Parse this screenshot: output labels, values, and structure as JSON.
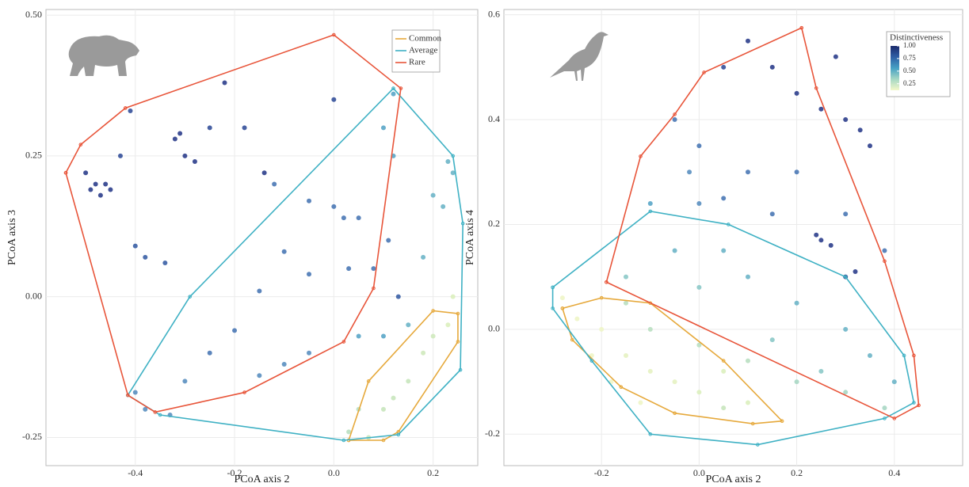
{
  "chart_data": [
    {
      "type": "scatter",
      "xlabel": "PCoA axis 2",
      "ylabel": "PCoA axis 3",
      "xlim": [
        -0.58,
        0.29
      ],
      "ylim": [
        -0.3,
        0.51
      ],
      "xticks": [
        -0.4,
        -0.2,
        {
          "value": 0,
          "label": "0.0"
        },
        0.2
      ],
      "yticks": [
        {
          "value": 0.5,
          "label": "0.50"
        },
        0.25,
        {
          "value": 0,
          "label": "0.00"
        },
        -0.25
      ],
      "grid": true,
      "legend": "top-right",
      "x": [
        -0.49,
        -0.47,
        -0.48,
        -0.45,
        -0.46,
        -0.5,
        -0.43,
        -0.41,
        -0.32,
        -0.3,
        -0.28,
        -0.31,
        -0.25,
        -0.22,
        -0.18,
        -0.14,
        0.0,
        -0.4,
        -0.38,
        -0.34,
        -0.12,
        -0.05,
        0.0,
        0.02,
        0.05,
        0.03,
        0.08,
        0.11,
        0.12,
        0.12,
        0.1,
        0.13,
        -0.1,
        -0.05,
        -0.15,
        -0.2,
        -0.25,
        -0.3,
        -0.4,
        -0.38,
        -0.33,
        0.05,
        0.1,
        0.15,
        0.2,
        0.23,
        0.24,
        0.22,
        0.18,
        -0.05,
        -0.1,
        -0.15,
        0.05,
        0.1,
        0.15,
        0.2,
        0.23,
        0.03,
        0.07,
        0.12,
        0.18,
        0.24
      ],
      "y": [
        0.19,
        0.18,
        0.2,
        0.19,
        0.2,
        0.22,
        0.25,
        0.33,
        0.28,
        0.25,
        0.24,
        0.29,
        0.3,
        0.38,
        0.3,
        0.22,
        0.35,
        0.09,
        0.07,
        0.06,
        0.2,
        0.17,
        0.16,
        0.14,
        0.14,
        0.05,
        0.05,
        0.1,
        0.25,
        0.36,
        0.3,
        0.0,
        0.08,
        0.04,
        0.01,
        -0.06,
        -0.1,
        -0.15,
        -0.17,
        -0.2,
        -0.21,
        -0.07,
        -0.07,
        -0.05,
        0.18,
        0.24,
        0.22,
        0.16,
        0.07,
        -0.1,
        -0.12,
        -0.14,
        -0.2,
        -0.2,
        -0.15,
        -0.07,
        -0.05,
        -0.24,
        -0.25,
        -0.18,
        -0.1,
        0.0
      ],
      "colors": [
        "#2c3e8c",
        "#2c3e8c",
        "#2c3e8c",
        "#2c3e8c",
        "#2c3e8c",
        "#2c3e8c",
        "#34509a",
        "#34509a",
        "#2c3e8c",
        "#2c3e8c",
        "#2c3e8c",
        "#2c3e8c",
        "#34509a",
        "#2c3e8c",
        "#34509a",
        "#2c3e8c",
        "#34509a",
        "#3a5fa5",
        "#3a5fa5",
        "#3a5fa5",
        "#4a78b5",
        "#4a78b5",
        "#4a78b5",
        "#4a78b5",
        "#4a78b5",
        "#4a78b5",
        "#4a78b5",
        "#4a78b5",
        "#5aa6c8",
        "#5aa6c8",
        "#5aa6c8",
        "#3a5fa5",
        "#4a78b5",
        "#4a78b5",
        "#4a78b5",
        "#4a78b5",
        "#4a78b5",
        "#5a8fc0",
        "#5a8fc0",
        "#5a8fc0",
        "#5a8fc0",
        "#5aa6c8",
        "#5aa6c8",
        "#6db5c8",
        "#6db5c8",
        "#6db5c8",
        "#6db5c8",
        "#6db5c8",
        "#6db5c8",
        "#5a8fc0",
        "#5a8fc0",
        "#5a8fc0",
        "#b9dfc1",
        "#c8e6bd",
        "#c8e6bd",
        "#cfe9bd",
        "#dcefbe",
        "#b9dfc1",
        "#c8e6bd",
        "#c8e6bd",
        "#cfe9bd",
        "#dcefbe"
      ],
      "series": [
        {
          "name": "Common",
          "color": "#e6a93c",
          "x": [
            0.03,
            0.07,
            0.2,
            0.25,
            0.25,
            0.13,
            0.1,
            0.03
          ],
          "y": [
            -0.255,
            -0.15,
            -0.025,
            -0.03,
            -0.08,
            -0.24,
            -0.255,
            -0.255
          ]
        },
        {
          "name": "Average",
          "color": "#3fb1c4",
          "x": [
            -0.415,
            -0.29,
            0.12,
            0.24,
            0.26,
            0.255,
            0.13,
            0.02,
            -0.35,
            -0.415
          ],
          "y": [
            -0.175,
            0.0,
            0.37,
            0.25,
            0.13,
            -0.13,
            -0.245,
            -0.255,
            -0.21,
            -0.175
          ]
        },
        {
          "name": "Rare",
          "color": "#e8553a",
          "x": [
            -0.54,
            -0.51,
            -0.42,
            0.0,
            0.135,
            0.08,
            0.02,
            -0.18,
            -0.36,
            -0.415,
            -0.54
          ],
          "y": [
            0.22,
            0.27,
            0.335,
            0.465,
            0.37,
            0.015,
            -0.08,
            -0.17,
            -0.205,
            -0.175,
            0.22
          ]
        }
      ]
    },
    {
      "type": "scatter",
      "xlabel": "PCoA axis 2",
      "ylabel": "PCoA axis 4",
      "xlim": [
        -0.4,
        0.54
      ],
      "ylim": [
        -0.26,
        0.61
      ],
      "xticks": [
        -0.2,
        {
          "value": 0,
          "label": "0.0"
        },
        0.2,
        0.4
      ],
      "yticks": [
        0.6,
        0.4,
        0.2,
        {
          "value": 0,
          "label": "0.0"
        },
        -0.2
      ],
      "grid": true,
      "x": [
        0.1,
        0.15,
        0.2,
        0.25,
        0.3,
        0.25,
        0.27,
        0.24,
        0.3,
        0.32,
        0.35,
        0.33,
        0.28,
        0.05,
        -0.05,
        0.0,
        0.1,
        0.2,
        0.15,
        0.05,
        0.3,
        0.38,
        0.0,
        -0.02,
        -0.1,
        -0.05,
        0.05,
        0.1,
        0.2,
        0.3,
        0.35,
        0.4,
        -0.15,
        0.0,
        0.15,
        0.25,
        -0.15,
        -0.1,
        0.0,
        0.1,
        0.2,
        0.3,
        0.38,
        0.05,
        -0.28,
        -0.25,
        -0.2,
        -0.22,
        -0.15,
        -0.1,
        -0.05,
        0.0,
        0.05,
        0.1,
        -0.18,
        -0.12
      ],
      "y": [
        0.55,
        0.5,
        0.45,
        0.42,
        0.4,
        0.17,
        0.16,
        0.18,
        0.1,
        0.11,
        0.35,
        0.38,
        0.52,
        0.5,
        0.4,
        0.35,
        0.3,
        0.3,
        0.22,
        0.25,
        0.22,
        0.15,
        0.24,
        0.3,
        0.24,
        0.15,
        0.15,
        0.1,
        0.05,
        0.0,
        -0.05,
        -0.1,
        0.1,
        0.08,
        -0.02,
        -0.08,
        0.05,
        0.0,
        -0.03,
        -0.06,
        -0.1,
        -0.12,
        -0.15,
        -0.15,
        0.06,
        0.02,
        0.0,
        -0.05,
        -0.05,
        -0.08,
        -0.1,
        -0.12,
        -0.08,
        -0.14,
        -0.1,
        -0.14
      ],
      "colors": [
        "#2c3e8c",
        "#2c3e8c",
        "#2c3e8c",
        "#2c3e8c",
        "#2c3e8c",
        "#2c3e8c",
        "#2c3e8c",
        "#2c3e8c",
        "#2c3e8c",
        "#2c3e8c",
        "#2c3e8c",
        "#2c3e8c",
        "#2c3e8c",
        "#34509a",
        "#4a78b5",
        "#4a78b5",
        "#4a78b5",
        "#4a78b5",
        "#4a78b5",
        "#4a78b5",
        "#4a78b5",
        "#4a78b5",
        "#5a8fc0",
        "#5a8fc0",
        "#5aa6c8",
        "#6db5c8",
        "#6db5c8",
        "#6db5c8",
        "#6db5c8",
        "#6db5c8",
        "#6db5c8",
        "#6db5c8",
        "#8cc9c8",
        "#8cc9c8",
        "#8cc9c8",
        "#8cc9c8",
        "#b9dfc1",
        "#b9dfc1",
        "#b9dfc1",
        "#b9dfc1",
        "#a8d7c4",
        "#a8d7c4",
        "#a8d7c4",
        "#c8e6bd",
        "#eef5c7",
        "#eef5c7",
        "#eef5c7",
        "#eef5c7",
        "#e6f2c2",
        "#e6f2c2",
        "#e6f2c2",
        "#dcefbe",
        "#dcefbe",
        "#dcefbe",
        "#eef5c7",
        "#eef5c7"
      ],
      "series": [
        {
          "color": "#e6a93c",
          "x": [
            -0.28,
            -0.2,
            -0.1,
            0.05,
            0.17,
            0.11,
            -0.05,
            -0.16,
            -0.26,
            -0.28
          ],
          "y": [
            0.04,
            0.06,
            0.05,
            -0.06,
            -0.175,
            -0.18,
            -0.16,
            -0.11,
            -0.02,
            0.04
          ]
        },
        {
          "color": "#3fb1c4",
          "x": [
            -0.3,
            -0.1,
            0.06,
            0.3,
            0.42,
            0.44,
            0.38,
            0.12,
            -0.1,
            -0.22,
            -0.3,
            -0.3
          ],
          "y": [
            0.08,
            0.225,
            0.2,
            0.1,
            -0.05,
            -0.14,
            -0.17,
            -0.22,
            -0.2,
            -0.06,
            0.04,
            0.08
          ]
        },
        {
          "color": "#e8553a",
          "x": [
            -0.19,
            -0.12,
            -0.05,
            0.01,
            0.21,
            0.24,
            0.38,
            0.44,
            0.45,
            0.4,
            -0.19
          ],
          "y": [
            0.09,
            0.33,
            0.41,
            0.49,
            0.575,
            0.46,
            0.13,
            -0.05,
            -0.145,
            -0.17,
            0.09
          ]
        }
      ],
      "colorbar": {
        "title": "Distinctiveness",
        "lim": [
          0.12,
          1.0
        ],
        "colors": [
          "#f3f8c9",
          "#a6d8c4",
          "#46a1c4",
          "#2f5fa5",
          "#1a2a6c"
        ],
        "ticks": [
          {
            "value": 1,
            "label": "1.00"
          },
          {
            "value": 0.75,
            "label": "0.75"
          },
          {
            "value": 0.5,
            "label": "0.50"
          },
          0.25
        ]
      }
    }
  ]
}
